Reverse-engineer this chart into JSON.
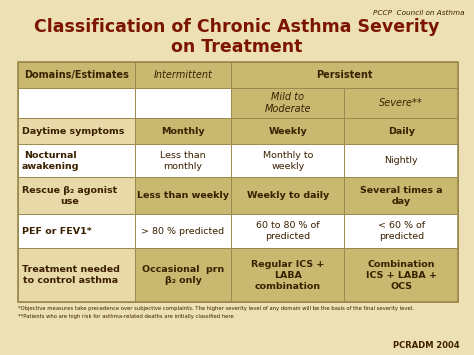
{
  "title_line1": "Classification of Chronic Asthma Severity",
  "title_line2": "on Treatment",
  "title_color": "#7B1500",
  "bg_color": "#EDE0B5",
  "header_color": "#C8B870",
  "subheader_color": "#C8B870",
  "cell_white": "#FFFFFF",
  "cell_tan": "#E8D9A8",
  "border_color": "#9A8A50",
  "text_color": "#3B2000",
  "top_label": "PCCP  Council on Asthma",
  "bottom_label": "PCRADM 2004",
  "footnote1": "*Objective measures take precedence over subjective complaints. The higher severity level of any domain will be the basis of the final severity level.",
  "footnote2": "**Patients who are high risk for asthma-related deaths are initially classified here",
  "col0_header": "Domains/Estimates",
  "col1_header": "Intermittent",
  "col23_header": "Persistent",
  "col2_subheader": "Mild to\nModerate",
  "col3_subheader": "Severe**",
  "rows": [
    [
      "Daytime symptoms",
      "Monthly",
      "Weekly",
      "Daily"
    ],
    [
      "Nocturnal\nawakening",
      "Less than\nmonthly",
      "Monthly to\nweekly",
      "Nightly"
    ],
    [
      "Rescue β₂ agonist\nuse",
      "Less than weekly",
      "Weekly to daily",
      "Several times a\nday"
    ],
    [
      "PEF or FEV1*",
      "> 80 % predicted",
      "60 to 80 % of\npredicted",
      "< 60 % of\npredicted"
    ],
    [
      "Treatment needed\nto control asthma",
      "Occasional  prn\nβ₂ only",
      "Regular ICS +\nLABA\ncombination",
      "Combination\nICS + LABA +\nOCS"
    ]
  ],
  "row_bg_col0": [
    "#FFFFFF",
    "#FFFFFF",
    "#E8D9A8",
    "#FFFFFF",
    "#E8D9A8"
  ],
  "row_bg_others": [
    "#C8B870",
    "#FFFFFF",
    "#C8B870",
    "#FFFFFF",
    "#C8B870"
  ]
}
